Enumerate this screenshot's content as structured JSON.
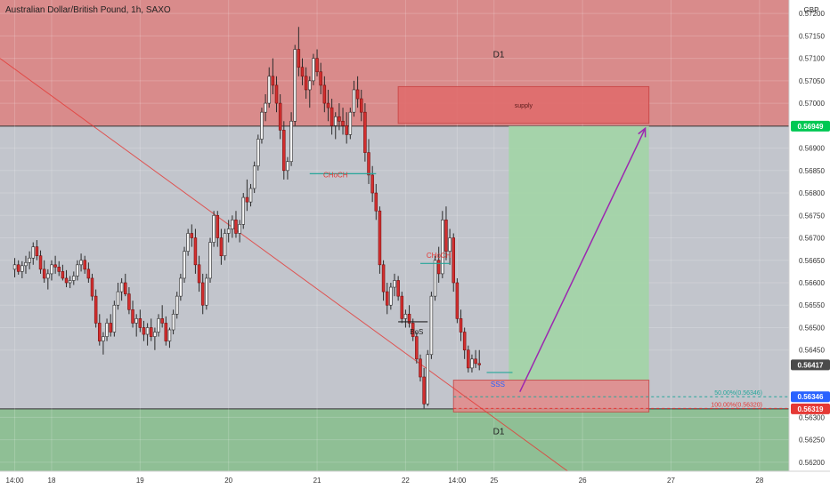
{
  "header": {
    "title": "Australian Dollar/British Pound, 1h, SAXO"
  },
  "axis": {
    "currency": "GBP"
  },
  "chart_data": {
    "type": "candlestick",
    "title": "Australian Dollar/British Pound, 1h, SAXO",
    "ylabel": "GBP",
    "ylim": [
      0.5618,
      0.5723
    ],
    "y_ticks": [
      {
        "value": 0.572,
        "label": "0.57200"
      },
      {
        "value": 0.5715,
        "label": "0.57150"
      },
      {
        "value": 0.571,
        "label": "0.57100"
      },
      {
        "value": 0.5705,
        "label": "0.57050"
      },
      {
        "value": 0.57,
        "label": "0.57000"
      },
      {
        "value": 0.569,
        "label": "0.56900"
      },
      {
        "value": 0.5685,
        "label": "0.56850"
      },
      {
        "value": 0.568,
        "label": "0.56800"
      },
      {
        "value": 0.5675,
        "label": "0.56750"
      },
      {
        "value": 0.567,
        "label": "0.56700"
      },
      {
        "value": 0.5665,
        "label": "0.56650"
      },
      {
        "value": 0.566,
        "label": "0.56600"
      },
      {
        "value": 0.5655,
        "label": "0.56550"
      },
      {
        "value": 0.565,
        "label": "0.56500"
      },
      {
        "value": 0.5645,
        "label": "0.56450"
      },
      {
        "value": 0.563,
        "label": "0.56300"
      },
      {
        "value": 0.5625,
        "label": "0.56250"
      },
      {
        "value": 0.562,
        "label": "0.56200"
      }
    ],
    "x_ticks": [
      {
        "value": 0,
        "label": "14:00"
      },
      {
        "value": 10,
        "label": "18"
      },
      {
        "value": 34,
        "label": "19"
      },
      {
        "value": 58,
        "label": "20"
      },
      {
        "value": 82,
        "label": "21"
      },
      {
        "value": 106,
        "label": "22"
      },
      {
        "value": 120,
        "label": "14:00"
      },
      {
        "value": 130,
        "label": "25"
      },
      {
        "value": 154,
        "label": "26"
      },
      {
        "value": 178,
        "label": "27"
      },
      {
        "value": 202,
        "label": "28"
      }
    ],
    "x_range": [
      -4,
      210
    ],
    "price_tags": [
      {
        "value": 0.56949,
        "label": "0.56949",
        "color": "#00c853"
      },
      {
        "value": 0.56417,
        "label": "0.56417",
        "color": "#4a4a4a"
      },
      {
        "value": 0.56346,
        "label": "0.56346",
        "color": "#2962ff"
      },
      {
        "value": 0.56319,
        "label": "0.56319",
        "color": "#e53935"
      }
    ],
    "zones": {
      "d1_supply": {
        "top": 0.5723,
        "bottom": 0.56949,
        "label": "D1",
        "color": "#d98b8b"
      },
      "d1_demand": {
        "top": 0.56319,
        "bottom": 0.5618,
        "label": "D1",
        "color": "#8fbf95"
      },
      "supply": {
        "x1": 104,
        "x2": 172,
        "top": 0.57037,
        "bottom": 0.56955,
        "label": "supply",
        "color": "#e06d6d"
      },
      "demand": {
        "x1": 119,
        "x2": 172,
        "top": 0.56383,
        "bottom": 0.56312,
        "color": "#e38a8a"
      },
      "target": {
        "x1": 134,
        "x2": 172,
        "top": 0.56949,
        "bottom": 0.56383,
        "color": "#a3d4a8"
      }
    },
    "annotations": [
      {
        "text": "CHoCH",
        "x": 87,
        "price": 0.56835,
        "color": "#e53935"
      },
      {
        "text": "CHoCH",
        "x": 115,
        "price": 0.56655,
        "color": "#e53935"
      },
      {
        "text": "BoS",
        "x": 109,
        "price": 0.56485,
        "color": "#222222"
      },
      {
        "text": "SSS",
        "x": 131,
        "price": 0.56368,
        "color": "#2962ff"
      }
    ],
    "fib_levels": [
      {
        "value": 0.56346,
        "label": "50.00%(0.56346)",
        "color": "#26a69a"
      },
      {
        "value": 0.5632,
        "label": "100.00%(0.56320)",
        "color": "#e53935"
      }
    ],
    "structure_lines": [
      {
        "x1": 80,
        "x2": 98,
        "price": 0.56843,
        "color": "#26a69a"
      },
      {
        "x1": 110,
        "x2": 118,
        "price": 0.56643,
        "color": "#26a69a"
      },
      {
        "x1": 104,
        "x2": 112,
        "price": 0.56513,
        "color": "#222222"
      },
      {
        "x1": 128,
        "x2": 135,
        "price": 0.564,
        "color": "#26a69a"
      }
    ],
    "trendline": {
      "x1": -4,
      "p1": 0.571,
      "x2": 150,
      "p2": 0.5618,
      "color": "#e53935"
    },
    "arrow": {
      "x1": 137,
      "p1": 0.56357,
      "x2": 171,
      "p2": 0.56944,
      "color": "#9c27b0"
    },
    "series": [
      {
        "name": "AUDGBP",
        "ohlc": [
          [
            0.5663,
            0.56655,
            0.56612,
            0.5664
          ],
          [
            0.5664,
            0.5665,
            0.56618,
            0.56625
          ],
          [
            0.56625,
            0.56648,
            0.5661,
            0.56638
          ],
          [
            0.56638,
            0.5666,
            0.5662,
            0.56645
          ],
          [
            0.56645,
            0.5667,
            0.5663,
            0.56655
          ],
          [
            0.56655,
            0.5669,
            0.5664,
            0.5668
          ],
          [
            0.5668,
            0.56695,
            0.5665,
            0.5666
          ],
          [
            0.5666,
            0.56672,
            0.5662,
            0.5663
          ],
          [
            0.5663,
            0.5665,
            0.566,
            0.5661
          ],
          [
            0.5661,
            0.5663,
            0.56585,
            0.5662
          ],
          [
            0.5662,
            0.5665,
            0.56605,
            0.5664
          ],
          [
            0.5664,
            0.5666,
            0.5662,
            0.56635
          ],
          [
            0.56635,
            0.56648,
            0.56615,
            0.56625
          ],
          [
            0.56625,
            0.5664,
            0.56605,
            0.5661
          ],
          [
            0.5661,
            0.56628,
            0.5659,
            0.566
          ],
          [
            0.566,
            0.56615,
            0.56588,
            0.56605
          ],
          [
            0.56605,
            0.56625,
            0.56595,
            0.56615
          ],
          [
            0.56615,
            0.5665,
            0.56605,
            0.5664
          ],
          [
            0.5664,
            0.56665,
            0.56625,
            0.5665
          ],
          [
            0.5665,
            0.5666,
            0.5662,
            0.5663
          ],
          [
            0.5663,
            0.56645,
            0.566,
            0.5661
          ],
          [
            0.5661,
            0.5662,
            0.5656,
            0.5657
          ],
          [
            0.5657,
            0.56585,
            0.565,
            0.5651
          ],
          [
            0.5651,
            0.5653,
            0.5646,
            0.5647
          ],
          [
            0.5647,
            0.5649,
            0.5644,
            0.5648
          ],
          [
            0.5648,
            0.5652,
            0.5647,
            0.5651
          ],
          [
            0.5651,
            0.5653,
            0.5648,
            0.5649
          ],
          [
            0.5649,
            0.5656,
            0.5648,
            0.5655
          ],
          [
            0.5655,
            0.566,
            0.5654,
            0.5658
          ],
          [
            0.5658,
            0.5661,
            0.5656,
            0.566
          ],
          [
            0.566,
            0.5662,
            0.5657,
            0.56575
          ],
          [
            0.56575,
            0.5659,
            0.5653,
            0.5654
          ],
          [
            0.5654,
            0.5656,
            0.565,
            0.5651
          ],
          [
            0.5651,
            0.5653,
            0.5648,
            0.5652
          ],
          [
            0.5652,
            0.5654,
            0.5649,
            0.565
          ],
          [
            0.565,
            0.56515,
            0.5647,
            0.56485
          ],
          [
            0.56485,
            0.5651,
            0.5646,
            0.565
          ],
          [
            0.565,
            0.5652,
            0.5647,
            0.5648
          ],
          [
            0.5648,
            0.565,
            0.5645,
            0.5649
          ],
          [
            0.5649,
            0.5653,
            0.5648,
            0.5652
          ],
          [
            0.5652,
            0.5655,
            0.565,
            0.5651
          ],
          [
            0.5651,
            0.56525,
            0.5646,
            0.5647
          ],
          [
            0.5647,
            0.565,
            0.56455,
            0.56495
          ],
          [
            0.56495,
            0.5654,
            0.56485,
            0.5653
          ],
          [
            0.5653,
            0.5658,
            0.5652,
            0.5657
          ],
          [
            0.5657,
            0.5662,
            0.5656,
            0.5661
          ],
          [
            0.5661,
            0.5668,
            0.566,
            0.5667
          ],
          [
            0.5667,
            0.5672,
            0.5666,
            0.5671
          ],
          [
            0.5671,
            0.5673,
            0.5668,
            0.567
          ],
          [
            0.567,
            0.5672,
            0.5662,
            0.5664
          ],
          [
            0.5664,
            0.5666,
            0.5658,
            0.566
          ],
          [
            0.566,
            0.5662,
            0.5653,
            0.5655
          ],
          [
            0.5655,
            0.5662,
            0.5654,
            0.5661
          ],
          [
            0.5661,
            0.567,
            0.566,
            0.5669
          ],
          [
            0.5669,
            0.5676,
            0.5668,
            0.5675
          ],
          [
            0.5675,
            0.5676,
            0.5668,
            0.567
          ],
          [
            0.567,
            0.5672,
            0.5664,
            0.5666
          ],
          [
            0.5666,
            0.5672,
            0.5665,
            0.5671
          ],
          [
            0.5671,
            0.5674,
            0.5669,
            0.5672
          ],
          [
            0.5672,
            0.5675,
            0.567,
            0.5674
          ],
          [
            0.5674,
            0.5676,
            0.567,
            0.5671
          ],
          [
            0.5671,
            0.5674,
            0.5669,
            0.5673
          ],
          [
            0.5673,
            0.568,
            0.5672,
            0.5679
          ],
          [
            0.5679,
            0.5683,
            0.5676,
            0.5678
          ],
          [
            0.5678,
            0.5682,
            0.5677,
            0.5681
          ],
          [
            0.5681,
            0.5687,
            0.568,
            0.5686
          ],
          [
            0.5686,
            0.5693,
            0.5685,
            0.5692
          ],
          [
            0.5692,
            0.5699,
            0.5691,
            0.5698
          ],
          [
            0.5698,
            0.5702,
            0.5696,
            0.57
          ],
          [
            0.57,
            0.5708,
            0.5699,
            0.5706
          ],
          [
            0.5706,
            0.571,
            0.5702,
            0.5704
          ],
          [
            0.5704,
            0.5706,
            0.5698,
            0.57
          ],
          [
            0.57,
            0.5702,
            0.5692,
            0.5694
          ],
          [
            0.5694,
            0.5696,
            0.5683,
            0.5685
          ],
          [
            0.5685,
            0.5688,
            0.5683,
            0.5687
          ],
          [
            0.5687,
            0.5698,
            0.5686,
            0.5696
          ],
          [
            0.5696,
            0.5713,
            0.5695,
            0.5712
          ],
          [
            0.5712,
            0.5717,
            0.5706,
            0.5708
          ],
          [
            0.5708,
            0.571,
            0.5704,
            0.5706
          ],
          [
            0.5706,
            0.5708,
            0.5701,
            0.5703
          ],
          [
            0.5703,
            0.5706,
            0.5699,
            0.5705
          ],
          [
            0.5705,
            0.5711,
            0.5704,
            0.571
          ],
          [
            0.571,
            0.5712,
            0.5706,
            0.5707
          ],
          [
            0.5707,
            0.5709,
            0.5702,
            0.5704
          ],
          [
            0.5704,
            0.5706,
            0.5698,
            0.57
          ],
          [
            0.57,
            0.5703,
            0.5696,
            0.5699
          ],
          [
            0.5699,
            0.5701,
            0.5693,
            0.5695
          ],
          [
            0.5695,
            0.5698,
            0.5692,
            0.5697
          ],
          [
            0.5697,
            0.57,
            0.5694,
            0.5696
          ],
          [
            0.5696,
            0.5699,
            0.5693,
            0.5695
          ],
          [
            0.5695,
            0.5698,
            0.5691,
            0.5693
          ],
          [
            0.5693,
            0.5699,
            0.5692,
            0.5698
          ],
          [
            0.5698,
            0.5705,
            0.5697,
            0.5703
          ],
          [
            0.5703,
            0.5706,
            0.5699,
            0.5701
          ],
          [
            0.5701,
            0.5703,
            0.5696,
            0.5698
          ],
          [
            0.5698,
            0.57,
            0.5687,
            0.5689
          ],
          [
            0.5689,
            0.5692,
            0.5682,
            0.5684
          ],
          [
            0.5684,
            0.5686,
            0.5678,
            0.568
          ],
          [
            0.568,
            0.5682,
            0.5674,
            0.5676
          ],
          [
            0.5676,
            0.5677,
            0.5662,
            0.5664
          ],
          [
            0.5664,
            0.5665,
            0.5656,
            0.5658
          ],
          [
            0.5658,
            0.566,
            0.5653,
            0.5655
          ],
          [
            0.5655,
            0.566,
            0.5654,
            0.5659
          ],
          [
            0.5659,
            0.5662,
            0.5657,
            0.56605
          ],
          [
            0.56605,
            0.56615,
            0.5656,
            0.5657
          ],
          [
            0.5657,
            0.5658,
            0.5651,
            0.5652
          ],
          [
            0.5652,
            0.5654,
            0.565,
            0.5653
          ],
          [
            0.5653,
            0.5655,
            0.565,
            0.5651
          ],
          [
            0.5651,
            0.5652,
            0.5647,
            0.5648
          ],
          [
            0.5648,
            0.5649,
            0.5642,
            0.5643
          ],
          [
            0.5643,
            0.5644,
            0.5638,
            0.5639
          ],
          [
            0.5639,
            0.5641,
            0.5632,
            0.5633
          ],
          [
            0.5633,
            0.5645,
            0.56325,
            0.5644
          ],
          [
            0.5644,
            0.5658,
            0.5643,
            0.5657
          ],
          [
            0.5657,
            0.5666,
            0.5656,
            0.5665
          ],
          [
            0.5665,
            0.5668,
            0.566,
            0.5662
          ],
          [
            0.5662,
            0.5676,
            0.5661,
            0.5674
          ],
          [
            0.5674,
            0.5677,
            0.5665,
            0.5667
          ],
          [
            0.5667,
            0.5672,
            0.5664,
            0.567
          ],
          [
            0.567,
            0.5671,
            0.5658,
            0.566
          ],
          [
            0.566,
            0.5661,
            0.5651,
            0.5652
          ],
          [
            0.5652,
            0.5654,
            0.5647,
            0.5649
          ],
          [
            0.5649,
            0.565,
            0.5643,
            0.5645
          ],
          [
            0.5645,
            0.5646,
            0.564,
            0.5641
          ],
          [
            0.5641,
            0.5644,
            0.564,
            0.5643
          ],
          [
            0.5643,
            0.5645,
            0.5641,
            0.5642
          ],
          [
            0.5642,
            0.5645,
            0.56405,
            0.56417
          ]
        ]
      }
    ]
  }
}
